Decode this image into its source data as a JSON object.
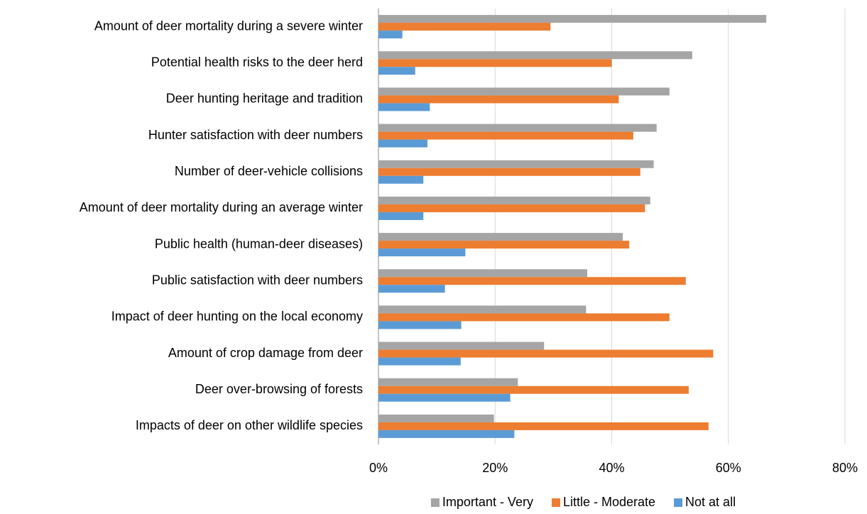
{
  "chart_data": {
    "type": "hbar",
    "categories": [
      "Amount of deer mortality during a severe winter",
      "Potential health risks to the deer herd",
      "Deer hunting heritage and tradition",
      "Hunter satisfaction with deer numbers",
      "Number of deer-vehicle collisions",
      "Amount of deer mortality during an average winter",
      "Public health (human-deer diseases)",
      "Public satisfaction with deer numbers",
      "Impact of deer hunting on the local economy",
      "Amount of crop damage from deer",
      "Deer over-browsing of forests",
      "Impacts of deer on other wildlife species"
    ],
    "series": [
      {
        "name": "Important - Very",
        "color": "#a5a5a5",
        "values": [
          66.5,
          53.8,
          49.9,
          47.7,
          47.2,
          46.6,
          41.9,
          35.8,
          35.6,
          28.4,
          23.9,
          19.8
        ]
      },
      {
        "name": "Little - Moderate",
        "color": "#ed7d31",
        "values": [
          29.5,
          40,
          41.2,
          43.7,
          44.9,
          45.7,
          43,
          52.7,
          49.9,
          57.4,
          53.2,
          56.6
        ]
      },
      {
        "name": "Not at all",
        "color": "#5b9bd5",
        "values": [
          4.1,
          6.3,
          8.8,
          8.4,
          7.7,
          7.7,
          14.9,
          11.4,
          14.2,
          14.1,
          22.6,
          23.3
        ]
      }
    ],
    "xlim": [
      0,
      80
    ],
    "xticks": [
      {
        "value": 0,
        "label": "0%"
      },
      {
        "value": 20,
        "label": "20%"
      },
      {
        "value": 40,
        "label": "40%"
      },
      {
        "value": 60,
        "label": "60%"
      },
      {
        "value": 80,
        "label": "80%"
      }
    ],
    "grid": true,
    "legend": "bottom"
  }
}
